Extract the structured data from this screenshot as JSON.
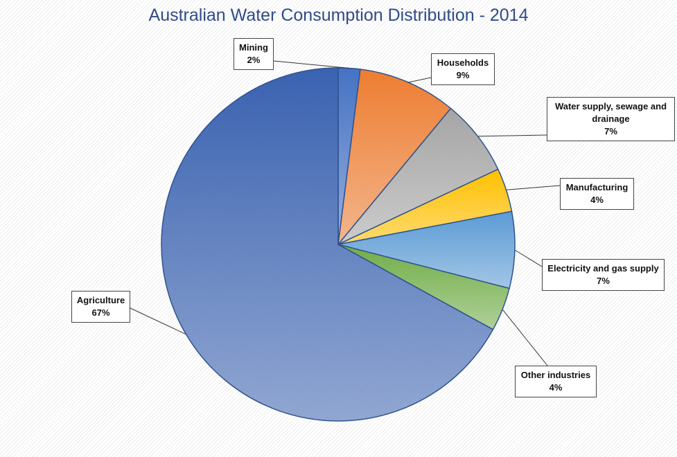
{
  "chart_data": {
    "type": "pie",
    "title": "Australian Water Consumption Distribution - 2014",
    "categories": [
      "Mining",
      "Households",
      "Water supply, sewage and drainage",
      "Manufacturing",
      "Electricity and gas supply",
      "Other industries",
      "Agriculture"
    ],
    "values": [
      2,
      9,
      7,
      4,
      7,
      4,
      67
    ],
    "value_labels": [
      "2%",
      "9%",
      "7%",
      "4%",
      "7%",
      "4%",
      "67%"
    ],
    "colors": [
      "#4472c4",
      "#ed7d31",
      "#a5a5a5",
      "#ffc000",
      "#5b9bd5",
      "#70ad47",
      "#3a62b0"
    ]
  }
}
